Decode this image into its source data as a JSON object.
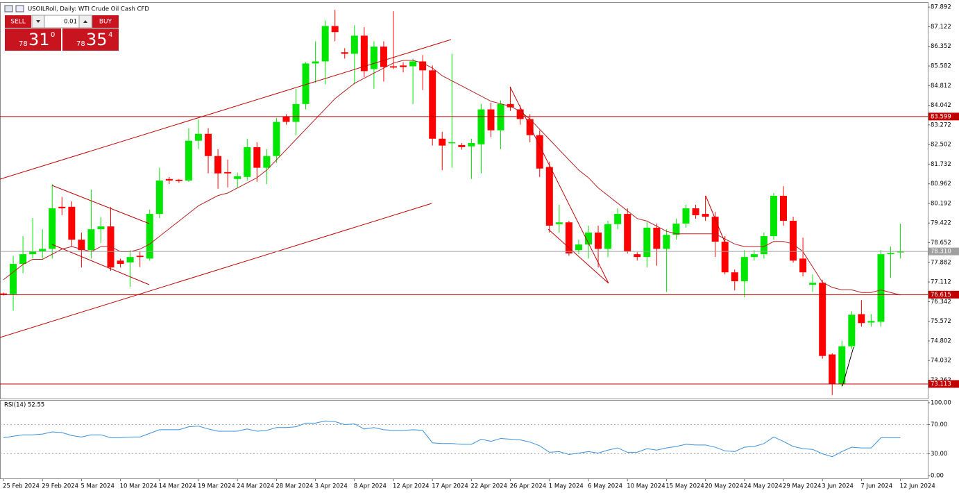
{
  "chart_data": [
    {
      "type": "candlestick",
      "title": "USOILRoll, Daily: WTI Crude Oil Cash CFD",
      "categories": [
        "25 Feb 2024",
        null,
        null,
        null,
        "29 Feb 2024",
        null,
        null,
        null,
        "5 Mar 2024",
        null,
        null,
        null,
        "10 Mar 2024",
        null,
        null,
        null,
        "14 Mar 2024",
        null,
        null,
        null,
        "19 Mar 2024",
        null,
        null,
        null,
        "24 Mar 2024",
        null,
        null,
        null,
        "28 Mar 2024",
        null,
        null,
        null,
        "3 Apr 2024",
        null,
        null,
        null,
        "8 Apr 2024",
        null,
        null,
        null,
        "12 Apr 2024",
        null,
        null,
        null,
        "17 Apr 2024",
        null,
        null,
        null,
        "22 Apr 2024",
        null,
        null,
        null,
        "26 Apr 2024",
        null,
        null,
        null,
        "1 May 2024",
        null,
        null,
        null,
        "6 May 2024",
        null,
        null,
        null,
        "10 May 2024",
        null,
        null,
        null,
        "15 May 2024",
        null,
        null,
        null,
        "20 May 2024",
        null,
        null,
        null,
        "24 May 2024",
        null,
        null,
        null,
        "29 May 2024",
        null,
        null,
        null,
        "3 Jun 2024",
        null,
        null,
        null,
        "7 Jun 2024",
        null,
        null,
        null,
        "12 Jun 2024"
      ],
      "open": [
        76.66,
        76.64,
        77.82,
        78.2,
        78.3,
        78.41,
        80.06,
        80.06,
        78.77,
        78.36,
        79.18,
        79.29,
        77.95,
        77.88,
        78.14,
        78.03,
        79.78,
        81.15,
        81.12,
        81.09,
        82.65,
        82.92,
        82.05,
        81.42,
        81.15,
        81.23,
        82.4,
        81.59,
        82.05,
        83.6,
        83.39,
        84.09,
        85.68,
        85.76,
        87.15,
        86.12,
        86.06,
        86.77,
        85.46,
        86.34,
        85.57,
        85.6,
        85.57,
        85.76,
        85.41,
        82.73,
        82.55,
        82.48,
        82.43,
        82.51,
        83.88,
        83.06,
        84.09,
        83.88,
        83.5,
        82.87,
        81.62,
        79.38,
        79.45,
        78.36,
        78.58,
        79.05,
        78.41,
        79.38,
        79.78,
        78.2,
        78.09,
        79.24,
        78.41,
        78.96,
        79.4,
        80.0,
        79.78,
        79.67,
        78.69,
        77.49,
        77.14,
        78.09,
        78.2,
        78.91,
        80.49,
        79.51,
        78.03,
        77.0,
        77.08,
        74.27,
        73.12,
        74.59,
        75.85,
        75.52,
        75.55,
        78.2,
        78.28
      ],
      "high": [
        76.7,
        78.14,
        78.91,
        79.62,
        79.18,
        80.95,
        80.45,
        80.27,
        79.05,
        80.73,
        79.65,
        80.05,
        78.03,
        78.36,
        78.3,
        79.95,
        81.59,
        81.23,
        81.15,
        83.14,
        83.49,
        83.14,
        82.32,
        81.91,
        81.4,
        82.73,
        82.59,
        82.32,
        83.55,
        83.69,
        84.69,
        85.73,
        86.55,
        87.37,
        87.78,
        86.28,
        87.18,
        87.1,
        86.55,
        86.55,
        87.73,
        85.73,
        85.87,
        86.01,
        85.6,
        83.0,
        86.06,
        82.56,
        82.73,
        84.09,
        84.14,
        84.23,
        84.77,
        84.04,
        83.69,
        83.06,
        81.83,
        80.14,
        79.51,
        78.77,
        79.32,
        79.32,
        79.51,
        80.0,
        80.0,
        78.28,
        79.45,
        79.4,
        79.18,
        79.59,
        80.14,
        80.14,
        80.49,
        79.86,
        78.91,
        77.6,
        78.36,
        78.36,
        79.05,
        80.6,
        80.87,
        79.67,
        78.85,
        77.41,
        77.19,
        74.32,
        74.81,
        75.96,
        76.4,
        75.85,
        78.36,
        78.5,
        79.4
      ],
      "low": [
        76.58,
        75.99,
        77.46,
        78.03,
        78.03,
        78.03,
        79.73,
        78.5,
        77.68,
        78.03,
        78.64,
        77.55,
        77.68,
        76.92,
        77.7,
        77.95,
        79.62,
        80.95,
        81.0,
        81.04,
        82.32,
        81.37,
        80.77,
        80.82,
        80.82,
        81.09,
        81.04,
        80.95,
        81.78,
        83.28,
        82.87,
        83.88,
        84.91,
        84.86,
        86.55,
        85.87,
        84.86,
        85.14,
        84.69,
        84.97,
        85.46,
        85.33,
        84.09,
        84.64,
        82.46,
        81.5,
        81.59,
        82.3,
        81.15,
        81.37,
        82.79,
        82.32,
        83.82,
        83.28,
        82.59,
        81.23,
        79.05,
        79.05,
        78.14,
        78.2,
        78.03,
        77.68,
        78.09,
        79.18,
        78.23,
        77.95,
        77.68,
        77.75,
        76.72,
        78.77,
        79.24,
        79.59,
        79.51,
        78.09,
        77.41,
        76.78,
        76.51,
        77.95,
        78.03,
        78.77,
        79.32,
        77.87,
        77.33,
        76.72,
        74.1,
        72.68,
        73.01,
        74.48,
        75.36,
        75.36,
        75.36,
        77.27,
        78.03
      ],
      "close": [
        76.62,
        77.82,
        78.2,
        78.3,
        78.41,
        80.0,
        80.0,
        78.77,
        78.36,
        79.18,
        79.29,
        77.68,
        77.82,
        78.09,
        78.09,
        79.78,
        81.09,
        81.09,
        81.07,
        82.65,
        82.92,
        82.05,
        81.37,
        81.37,
        81.26,
        82.4,
        81.59,
        82.05,
        83.39,
        83.39,
        84.09,
        85.68,
        85.76,
        87.15,
        86.91,
        86.06,
        86.77,
        85.38,
        86.34,
        85.54,
        85.52,
        85.54,
        85.76,
        85.41,
        82.73,
        82.46,
        82.59,
        82.4,
        82.56,
        83.88,
        83.06,
        84.09,
        83.96,
        83.5,
        82.87,
        81.56,
        79.32,
        79.45,
        78.23,
        78.58,
        79.05,
        78.41,
        79.38,
        79.78,
        78.31,
        78.09,
        79.24,
        78.41,
        78.96,
        79.4,
        80.0,
        79.73,
        79.67,
        78.69,
        77.49,
        77.14,
        78.09,
        78.2,
        78.91,
        80.49,
        79.51,
        77.95,
        77.49,
        77.08,
        74.21,
        73.12,
        74.59,
        75.83,
        75.5,
        75.58,
        78.2,
        78.25,
        78.31
      ],
      "up_color": "#00e600",
      "down_color": "#ff0000",
      "ma": {
        "color": "#b22222",
        "values": [
          77.2,
          77.5,
          77.8,
          78.0,
          78.0,
          78.2,
          78.4,
          78.5,
          78.4,
          78.3,
          78.5,
          78.5,
          78.3,
          78.3,
          78.4,
          78.6,
          78.9,
          79.2,
          79.5,
          79.8,
          80.1,
          80.3,
          80.5,
          80.6,
          80.8,
          81.0,
          81.2,
          81.5,
          81.9,
          82.3,
          82.7,
          83.1,
          83.5,
          83.9,
          84.3,
          84.6,
          84.9,
          85.1,
          85.3,
          85.5,
          85.7,
          85.8,
          85.8,
          85.7,
          85.5,
          85.2,
          85.0,
          84.8,
          84.6,
          84.4,
          84.2,
          84.1,
          84.0,
          83.8,
          83.5,
          83.1,
          82.7,
          82.3,
          81.9,
          81.5,
          81.2,
          80.8,
          80.5,
          80.2,
          79.9,
          79.6,
          79.5,
          79.3,
          79.1,
          79.0,
          79.0,
          79.0,
          79.0,
          79.0,
          78.8,
          78.6,
          78.5,
          78.5,
          78.5,
          78.7,
          78.7,
          78.6,
          78.3,
          77.7,
          77.1,
          76.9,
          76.8,
          76.8,
          76.7,
          76.7,
          76.8,
          76.7,
          76.6
        ]
      },
      "ylim": [
        72.54,
        88.06
      ],
      "yticks": [
        87.892,
        87.122,
        86.352,
        85.582,
        84.812,
        84.042,
        83.272,
        82.502,
        81.732,
        80.962,
        80.192,
        79.422,
        78.652,
        77.882,
        77.112,
        76.342,
        75.572,
        74.802,
        74.032,
        73.262
      ],
      "levels": [
        {
          "value": 83.599,
          "label": "83.599",
          "color": "#c00000"
        },
        {
          "value": 78.31,
          "label": "78.310",
          "color": "#a0a0a0"
        },
        {
          "value": 76.615,
          "label": "76.615",
          "color": "#c00000"
        },
        {
          "value": 73.113,
          "label": "73.113",
          "color": "#c00000"
        }
      ]
    },
    {
      "type": "line",
      "title": "RSI(14) 52.55",
      "color": "#3b8fd9",
      "values": [
        52,
        54,
        56,
        56,
        57,
        60,
        59,
        55,
        53,
        56,
        56,
        52,
        52,
        53,
        53,
        58,
        63,
        63,
        63,
        67,
        68,
        64,
        61,
        61,
        61,
        64,
        61,
        62,
        66,
        66,
        67,
        72,
        72,
        75,
        74,
        70,
        71,
        64,
        66,
        63,
        62,
        62,
        63,
        62,
        45,
        44,
        44,
        43,
        43,
        50,
        47,
        51,
        50,
        49,
        46,
        41,
        32,
        33,
        29,
        31,
        33,
        31,
        35,
        38,
        32,
        32,
        37,
        35,
        38,
        40,
        43,
        42,
        42,
        39,
        34,
        33,
        39,
        40,
        44,
        53,
        47,
        40,
        37,
        36,
        30,
        26,
        33,
        39,
        38,
        38,
        52,
        52,
        52
      ],
      "ylim": [
        0,
        100
      ],
      "yticks": [
        {
          "value": 100,
          "label": "100.00"
        },
        {
          "value": 70,
          "label": "70.00"
        },
        {
          "value": 30,
          "label": "30.00"
        },
        {
          "value": 0,
          "label": "0.00"
        }
      ]
    }
  ],
  "trade_panel": {
    "sell": "SELL",
    "lot": "0.01",
    "buy": "BUY",
    "bid": [
      "78",
      "31",
      "0"
    ],
    "ask": [
      "78",
      "35",
      "4"
    ]
  }
}
